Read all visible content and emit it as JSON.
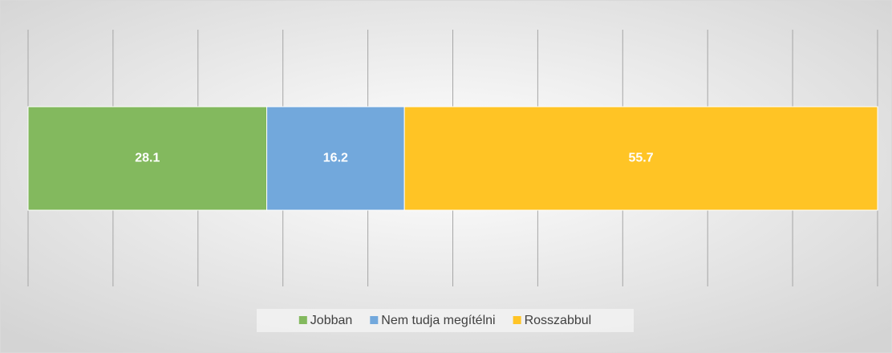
{
  "chart_data": {
    "type": "bar",
    "orientation": "horizontal",
    "stacked": true,
    "categories": [
      null
    ],
    "series": [
      {
        "name": "Jobban",
        "color": "#83b95e",
        "values": [
          28.1
        ]
      },
      {
        "name": "Nem tudja megítélni",
        "color": "#72a8dc",
        "values": [
          16.2
        ]
      },
      {
        "name": "Rosszabbul",
        "color": "#ffc425",
        "values": [
          55.7
        ]
      }
    ],
    "xlim": [
      0,
      100
    ],
    "xticks": [
      0,
      10,
      20,
      30,
      40,
      50,
      60,
      70,
      80,
      90,
      100
    ],
    "grid": true,
    "legend": "bottom"
  }
}
